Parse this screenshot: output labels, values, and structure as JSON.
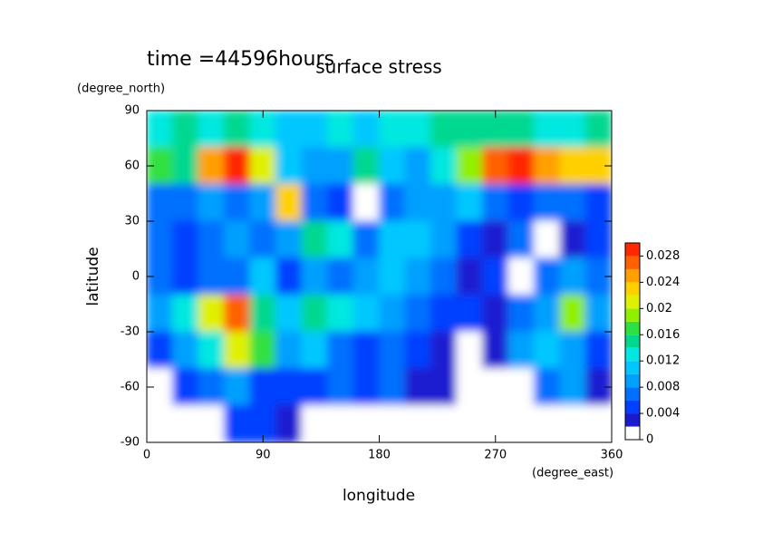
{
  "chart_data": {
    "type": "contour",
    "title": "surface stress",
    "annotation": "time =44596hours",
    "x_label": "longitude",
    "y_label": "latitude",
    "x_unit": "(degree_east)",
    "y_unit": "(degree_north)",
    "xlim": [
      0,
      360
    ],
    "ylim": [
      -90,
      90
    ],
    "xticks": [
      0,
      90,
      180,
      270,
      360
    ],
    "yticks": [
      90,
      60,
      30,
      0,
      -30,
      -60,
      -90
    ],
    "x": [
      10,
      30,
      50,
      70,
      90,
      110,
      130,
      150,
      170,
      190,
      210,
      230,
      250,
      270,
      290,
      310,
      330,
      350
    ],
    "y": [
      80,
      60,
      40,
      20,
      0,
      -20,
      -40,
      -60,
      -80
    ],
    "z": [
      [
        0.012,
        0.014,
        0.012,
        0.014,
        0.012,
        0.01,
        0.01,
        0.012,
        0.01,
        0.012,
        0.012,
        0.014,
        0.014,
        0.014,
        0.014,
        0.012,
        0.012,
        0.014
      ],
      [
        0.016,
        0.014,
        0.024,
        0.028,
        0.02,
        0.01,
        0.008,
        0.008,
        0.014,
        0.01,
        0.008,
        0.012,
        0.018,
        0.026,
        0.028,
        0.024,
        0.022,
        0.022
      ],
      [
        0.006,
        0.006,
        0.008,
        0.006,
        0.008,
        0.022,
        0.006,
        0.004,
        0.0,
        0.006,
        0.008,
        0.008,
        0.01,
        0.006,
        0.004,
        0.006,
        0.006,
        0.004
      ],
      [
        0.006,
        0.004,
        0.006,
        0.008,
        0.006,
        0.008,
        0.014,
        0.012,
        0.006,
        0.01,
        0.01,
        0.008,
        0.004,
        0.002,
        0.006,
        0.0,
        0.002,
        0.004
      ],
      [
        0.006,
        0.004,
        0.006,
        0.006,
        0.01,
        0.004,
        0.008,
        0.006,
        0.008,
        0.01,
        0.008,
        0.006,
        0.002,
        0.004,
        0.0,
        0.006,
        0.008,
        0.006
      ],
      [
        0.008,
        0.012,
        0.02,
        0.026,
        0.014,
        0.01,
        0.014,
        0.012,
        0.01,
        0.008,
        0.006,
        0.004,
        0.004,
        0.002,
        0.006,
        0.008,
        0.018,
        0.008
      ],
      [
        0.004,
        0.008,
        0.012,
        0.02,
        0.016,
        0.008,
        0.01,
        0.006,
        0.004,
        0.006,
        0.004,
        0.002,
        0.0,
        0.002,
        0.008,
        0.01,
        0.008,
        0.004
      ],
      [
        0.0,
        0.004,
        0.006,
        0.008,
        0.004,
        0.004,
        0.004,
        0.006,
        0.004,
        0.006,
        0.002,
        0.002,
        0.0,
        0.0,
        0.0,
        0.006,
        0.008,
        0.002
      ],
      [
        0,
        0,
        0,
        0.004,
        0.004,
        0.002,
        0,
        0,
        0,
        0,
        0,
        0,
        0,
        0,
        0,
        0,
        0,
        0
      ]
    ],
    "colorbar": {
      "lim": [
        0,
        0.03
      ],
      "ticks": [
        0,
        0.004,
        0.008,
        0.012,
        0.016,
        0.02,
        0.024,
        0.028
      ],
      "colors": [
        "#ffffff",
        "#1a1ad0",
        "#0040ff",
        "#0070ff",
        "#00a0ff",
        "#00c8ff",
        "#00e8e0",
        "#00d890",
        "#30e040",
        "#90f000",
        "#e0f000",
        "#ffd000",
        "#ffa000",
        "#ff6000",
        "#ff2800"
      ]
    }
  }
}
